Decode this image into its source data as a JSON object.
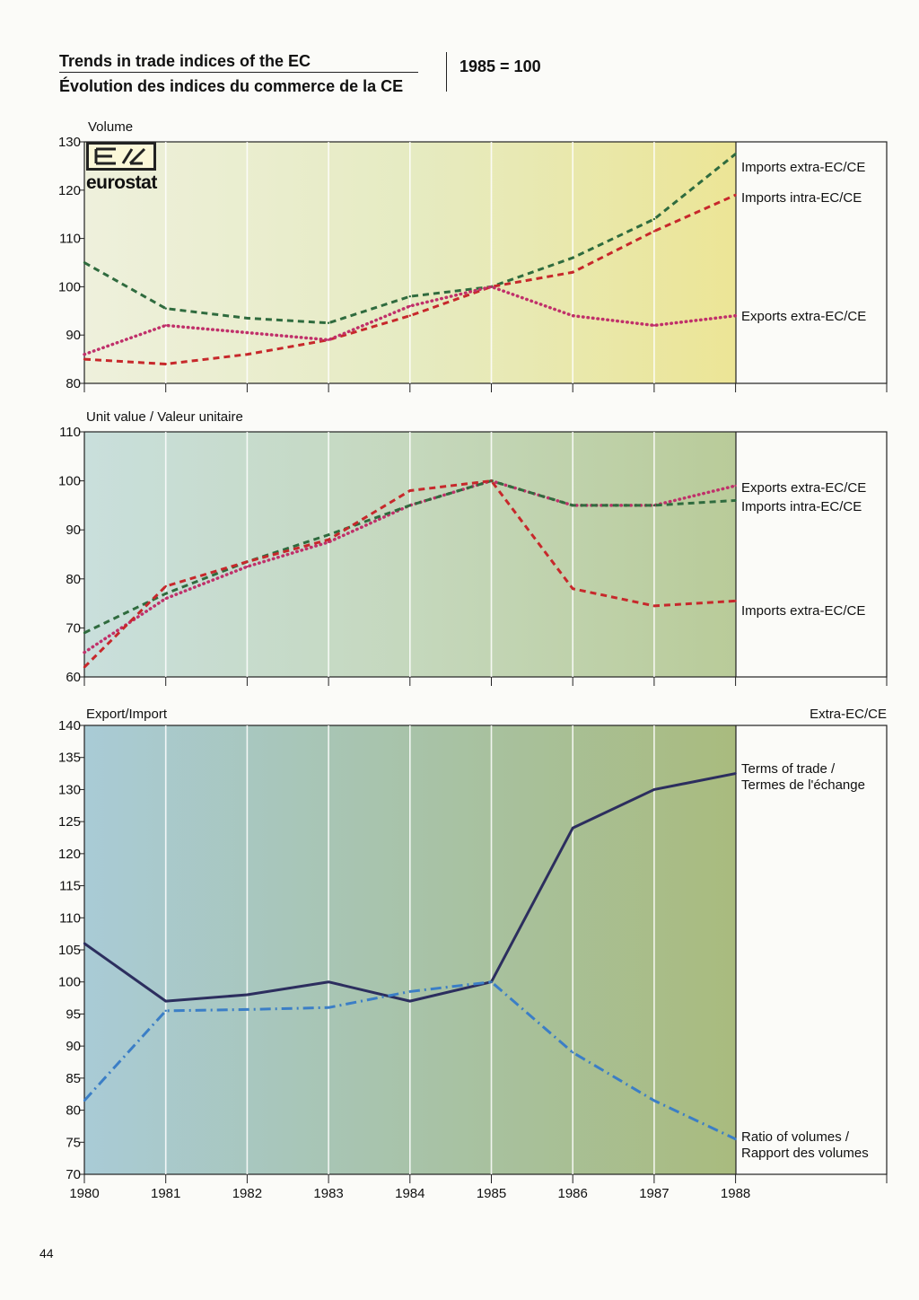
{
  "header": {
    "title_en": "Trends in trade indices of the EC",
    "title_fr": "Évolution des indices du commerce de la CE",
    "base": "1985 = 100"
  },
  "logo": {
    "text": "eurostat",
    "mark": "eurostat-logo-icon"
  },
  "page_number": "44",
  "colors": {
    "green": "#2f6b3e",
    "red": "#c7282b",
    "pink": "#c0306a",
    "navy": "#2c2e5e",
    "blue": "#3b7ec6"
  },
  "chart_data": [
    {
      "type": "line",
      "title": "Volume",
      "categories": [
        "1980",
        "1981",
        "1982",
        "1983",
        "1984",
        "1985",
        "1986",
        "1987",
        "1988"
      ],
      "ylim": [
        80,
        130
      ],
      "yticks": [
        80,
        90,
        100,
        110,
        120,
        130
      ],
      "series": [
        {
          "name": "Imports extra-EC/CE",
          "style": "dashed",
          "color": "#2f6b3e",
          "values": [
            105,
            95.5,
            93.5,
            92.5,
            98,
            100,
            106,
            114,
            127.5
          ]
        },
        {
          "name": "Imports intra-EC/CE",
          "style": "dashed",
          "color": "#c7282b",
          "values": [
            85,
            84,
            86,
            89,
            94,
            100,
            103,
            111.5,
            119
          ]
        },
        {
          "name": "Exports extra-EC/CE",
          "style": "dotted",
          "color": "#c0306a",
          "values": [
            86,
            92,
            90.5,
            89,
            96,
            100,
            94,
            92,
            94
          ]
        }
      ]
    },
    {
      "type": "line",
      "title": "Unit value / Valeur unitaire",
      "categories": [
        "1980",
        "1981",
        "1982",
        "1983",
        "1984",
        "1985",
        "1986",
        "1987",
        "1988"
      ],
      "ylim": [
        60,
        110
      ],
      "yticks": [
        60,
        70,
        80,
        90,
        100,
        110
      ],
      "series": [
        {
          "name": "Exports extra-EC/CE",
          "style": "dotted",
          "color": "#c0306a",
          "values": [
            65,
            76,
            82.5,
            87.5,
            95,
            100,
            95,
            95,
            99
          ]
        },
        {
          "name": "Imports intra-EC/CE",
          "style": "dashed",
          "color": "#2f6b3e",
          "values": [
            69,
            77,
            83.5,
            89,
            95,
            100,
            95,
            95,
            96
          ]
        },
        {
          "name": "Imports extra-EC/CE",
          "style": "dashed",
          "color": "#c7282b",
          "values": [
            62,
            78.5,
            83.5,
            88,
            98,
            100,
            78,
            74.5,
            75.5
          ]
        }
      ]
    },
    {
      "type": "line",
      "title": "Export/Import",
      "subtitle": "Extra-EC/CE",
      "categories": [
        "1980",
        "1981",
        "1982",
        "1983",
        "1984",
        "1985",
        "1986",
        "1987",
        "1988"
      ],
      "ylim": [
        70,
        140
      ],
      "yticks": [
        70,
        75,
        80,
        85,
        90,
        95,
        100,
        105,
        110,
        115,
        120,
        125,
        130,
        135,
        140
      ],
      "series": [
        {
          "name": "Terms of trade / Termes de l'échange",
          "style": "solid",
          "color": "#2c2e5e",
          "values": [
            106,
            97,
            98,
            100,
            97,
            100,
            124,
            130,
            132.5
          ]
        },
        {
          "name": "Ratio of volumes / Rapport des volumes",
          "style": "dashdot",
          "color": "#3b7ec6",
          "values": [
            81.5,
            95.5,
            95.7,
            96,
            98.5,
            100,
            89,
            81.5,
            75.5
          ]
        }
      ]
    }
  ],
  "legend_labels": [
    [
      "Imports extra-EC/CE",
      "Imports intra-EC/CE",
      "Exports extra-EC/CE"
    ],
    [
      "Exports extra-EC/CE",
      "Imports intra-EC/CE",
      "Imports extra-EC/CE"
    ],
    [
      "Terms of trade /",
      "Termes de l'échange",
      "Ratio of volumes /",
      "Rapport des volumes"
    ]
  ]
}
